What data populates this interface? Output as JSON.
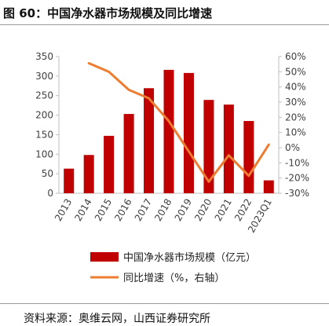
{
  "figure_title": "图 60：中国净水器市场规模及同比增速",
  "source_text": "资料来源：奥维云网，山西证券研究所",
  "colors": {
    "bar": "#c00000",
    "line": "#ed7d31",
    "axis": "#bfbfbf",
    "text": "#404040"
  },
  "chart_data": {
    "type": "bar",
    "title": "",
    "categories": [
      "2013",
      "2014",
      "2015",
      "2016",
      "2017",
      "2018",
      "2019",
      "2020",
      "2021",
      "2022",
      "2023Q1"
    ],
    "y_left": {
      "min": 0,
      "max": 350,
      "step": 50,
      "ticks": [
        "0",
        "50",
        "100",
        "150",
        "200",
        "250",
        "300",
        "350"
      ]
    },
    "y_right": {
      "min": -30,
      "max": 60,
      "step": 10,
      "ticks": [
        "-30%",
        "-20%",
        "-10%",
        "0%",
        "10%",
        "20%",
        "30%",
        "40%",
        "50%",
        "60%"
      ]
    },
    "grid": false,
    "legend_position": "bottom",
    "series": [
      {
        "name": "中国净水器市场规模（亿元）",
        "type": "bar",
        "axis": "left",
        "values": [
          63,
          98,
          147,
          203,
          269,
          316,
          308,
          239,
          227,
          185,
          33
        ]
      },
      {
        "name": "同比增速（%，右轴）",
        "type": "line",
        "axis": "right",
        "values": [
          null,
          55.6,
          50,
          38.1,
          32.5,
          17.5,
          -2.5,
          -22.4,
          -5,
          -18.5,
          2
        ]
      }
    ]
  }
}
